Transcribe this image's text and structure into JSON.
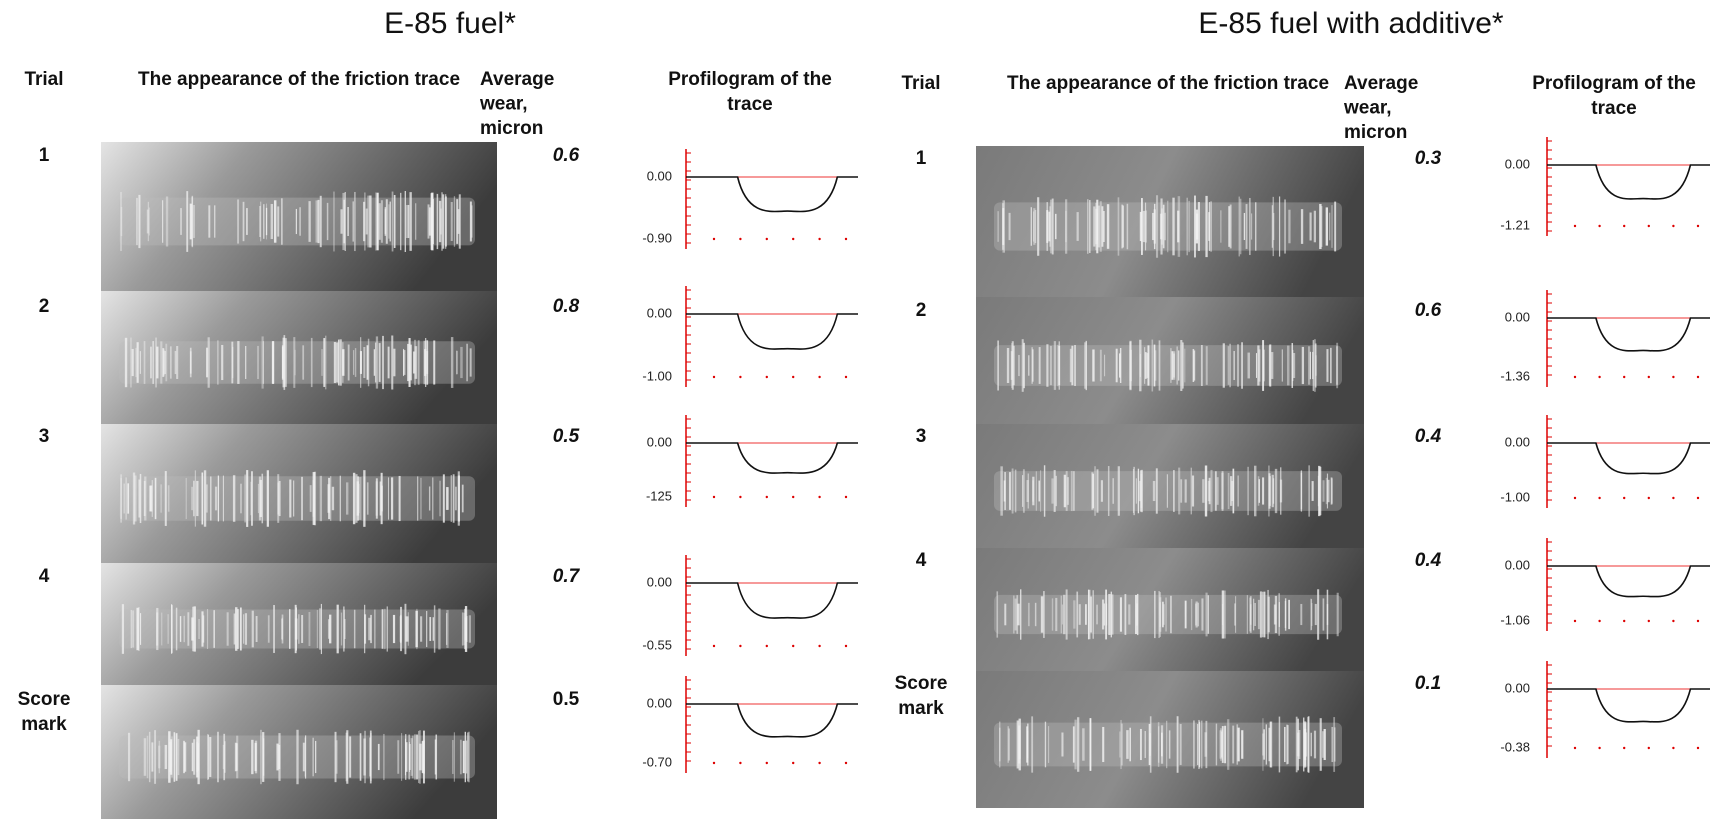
{
  "panels": [
    {
      "title": "E-85 fuel*",
      "headers": {
        "trial": "Trial",
        "appearance": "The appearance of the friction trace",
        "wear": [
          "Average",
          "wear,",
          "micron"
        ],
        "profilogram": [
          "Profilogram of the",
          "trace"
        ]
      },
      "rows": [
        {
          "trial": [
            "1"
          ],
          "wear": "0.6",
          "profile_top": "0.00",
          "profile_bottom": "-0.90"
        },
        {
          "trial": [
            "2"
          ],
          "wear": "0.8",
          "profile_top": "0.00",
          "profile_bottom": "-1.00"
        },
        {
          "trial": [
            "3"
          ],
          "wear": "0.5",
          "profile_top": "0.00",
          "profile_bottom": "-125"
        },
        {
          "trial": [
            "4"
          ],
          "wear": "0.7",
          "profile_top": "0.00",
          "profile_bottom": "-0.55"
        },
        {
          "trial": [
            "Score",
            "mark"
          ],
          "wear": "0.5",
          "profile_top": "0.00",
          "profile_bottom": "-0.70"
        }
      ]
    },
    {
      "title": "E-85 fuel with additive*",
      "headers": {
        "trial": "Trial",
        "appearance": "The appearance of the friction trace",
        "wear": [
          "Average",
          "wear,",
          "micron"
        ],
        "profilogram": [
          "Profilogram of the",
          "trace"
        ]
      },
      "rows": [
        {
          "trial": [
            "1"
          ],
          "wear": "0.3",
          "profile_top": "0.00",
          "profile_bottom": "-1.21"
        },
        {
          "trial": [
            "2"
          ],
          "wear": "0.6",
          "profile_top": "0.00",
          "profile_bottom": "-1.36"
        },
        {
          "trial": [
            "3"
          ],
          "wear": "0.4",
          "profile_top": "0.00",
          "profile_bottom": "-1.00"
        },
        {
          "trial": [
            "4"
          ],
          "wear": "0.4",
          "profile_top": "0.00",
          "profile_bottom": "-1.06"
        },
        {
          "trial": [
            "Score",
            "mark"
          ],
          "wear": "0.1",
          "profile_top": "0.00",
          "profile_bottom": "-0.38"
        }
      ]
    }
  ]
}
